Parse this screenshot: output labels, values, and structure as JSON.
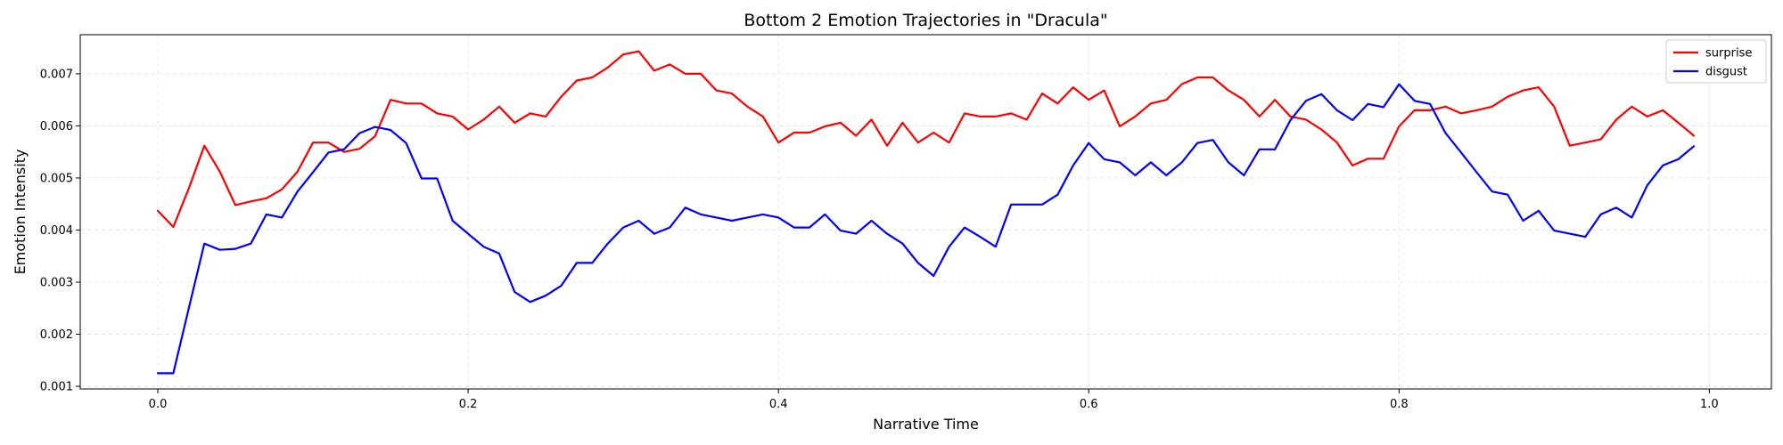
{
  "chart_data": {
    "type": "line",
    "title": "Bottom 2 Emotion Trajectories in \"Dracula\"",
    "xlabel": "Narrative Time",
    "ylabel": "Emotion Intensity",
    "xlim": [
      -0.05,
      1.04
    ],
    "ylim": [
      0.00095,
      0.00775
    ],
    "xticks": [
      0.0,
      0.2,
      0.4,
      0.6,
      0.8,
      1.0
    ],
    "xtick_labels": [
      "0.0",
      "0.2",
      "0.4",
      "0.6",
      "0.8",
      "1.0"
    ],
    "yticks": [
      0.001,
      0.002,
      0.003,
      0.004,
      0.005,
      0.006,
      0.007
    ],
    "ytick_labels": [
      "0.001",
      "0.002",
      "0.003",
      "0.004",
      "0.005",
      "0.006",
      "0.007"
    ],
    "grid": true,
    "legend_position": "top-right",
    "x": [
      0.0,
      0.01,
      0.02,
      0.03,
      0.04,
      0.05,
      0.06,
      0.07,
      0.08,
      0.09,
      0.1,
      0.11,
      0.12,
      0.13,
      0.14,
      0.15,
      0.16,
      0.17,
      0.18,
      0.19,
      0.2,
      0.21,
      0.22,
      0.23,
      0.24,
      0.25,
      0.26,
      0.27,
      0.28,
      0.29,
      0.3,
      0.31,
      0.32,
      0.33,
      0.34,
      0.35,
      0.36,
      0.37,
      0.38,
      0.39,
      0.4,
      0.41,
      0.42,
      0.43,
      0.44,
      0.45,
      0.46,
      0.47,
      0.48,
      0.49,
      0.5,
      0.51,
      0.52,
      0.53,
      0.54,
      0.55,
      0.56,
      0.57,
      0.58,
      0.59,
      0.6,
      0.61,
      0.62,
      0.63,
      0.64,
      0.65,
      0.66,
      0.67,
      0.68,
      0.69,
      0.7,
      0.71,
      0.72,
      0.73,
      0.74,
      0.75,
      0.76,
      0.77,
      0.78,
      0.79,
      0.8,
      0.81,
      0.82,
      0.83,
      0.84,
      0.85,
      0.86,
      0.87,
      0.88,
      0.89,
      0.9,
      0.91,
      0.92,
      0.93,
      0.94,
      0.95,
      0.96,
      0.97,
      0.98,
      0.99
    ],
    "series": [
      {
        "name": "surprise",
        "color": "#ff0000",
        "values": [
          0.00437,
          0.00406,
          0.0048,
          0.00562,
          0.00512,
          0.00448,
          0.00455,
          0.00461,
          0.00478,
          0.00512,
          0.00568,
          0.00568,
          0.0055,
          0.00556,
          0.0058,
          0.0065,
          0.00643,
          0.00643,
          0.00624,
          0.00618,
          0.00593,
          0.00612,
          0.00637,
          0.00606,
          0.00624,
          0.00618,
          0.00656,
          0.00687,
          0.00693,
          0.00712,
          0.00737,
          0.00743,
          0.00706,
          0.00718,
          0.007,
          0.007,
          0.00668,
          0.00662,
          0.00637,
          0.00618,
          0.00568,
          0.00587,
          0.00587,
          0.00599,
          0.00606,
          0.00581,
          0.00612,
          0.00562,
          0.00606,
          0.00568,
          0.00587,
          0.00568,
          0.00624,
          0.00618,
          0.00618,
          0.00624,
          0.00612,
          0.00662,
          0.00643,
          0.00674,
          0.0065,
          0.00668,
          0.00599,
          0.00618,
          0.00643,
          0.0065,
          0.0068,
          0.00693,
          0.00693,
          0.00668,
          0.0065,
          0.00618,
          0.0065,
          0.00618,
          0.00612,
          0.00593,
          0.00568,
          0.00524,
          0.00537,
          0.00537,
          0.00599,
          0.0063,
          0.0063,
          0.00637,
          0.00624,
          0.0063,
          0.00637,
          0.00656,
          0.00668,
          0.00674,
          0.00637,
          0.00562,
          0.00568,
          0.00574,
          0.00612,
          0.00637,
          0.00618,
          0.0063,
          0.00606,
          0.00581
        ]
      },
      {
        "name": "disgust",
        "color": "#0000ff",
        "values": [
          0.00125,
          0.00125,
          0.0025,
          0.00374,
          0.00362,
          0.00364,
          0.00374,
          0.0043,
          0.00424,
          0.00474,
          0.00511,
          0.00549,
          0.00555,
          0.00586,
          0.00598,
          0.00592,
          0.00567,
          0.00499,
          0.00499,
          0.00418,
          0.00393,
          0.00368,
          0.00355,
          0.00281,
          0.00262,
          0.00274,
          0.00293,
          0.00337,
          0.00337,
          0.00374,
          0.00405,
          0.00418,
          0.00393,
          0.00405,
          0.00443,
          0.0043,
          0.00424,
          0.00418,
          0.00424,
          0.0043,
          0.00424,
          0.00405,
          0.00405,
          0.0043,
          0.00399,
          0.00393,
          0.00418,
          0.00393,
          0.00374,
          0.00337,
          0.00312,
          0.00368,
          0.00405,
          0.00387,
          0.00368,
          0.00449,
          0.00449,
          0.00449,
          0.00468,
          0.00524,
          0.00567,
          0.00536,
          0.0053,
          0.00505,
          0.0053,
          0.00505,
          0.0053,
          0.00567,
          0.00573,
          0.0053,
          0.00505,
          0.00555,
          0.00555,
          0.00611,
          0.00648,
          0.00661,
          0.0063,
          0.00611,
          0.00642,
          0.00636,
          0.0068,
          0.00648,
          0.00642,
          0.00586,
          0.00549,
          0.00511,
          0.00474,
          0.00468,
          0.00418,
          0.00437,
          0.00399,
          0.00393,
          0.00387,
          0.0043,
          0.00443,
          0.00424,
          0.00486,
          0.00524,
          0.00536,
          0.00561
        ]
      }
    ]
  }
}
